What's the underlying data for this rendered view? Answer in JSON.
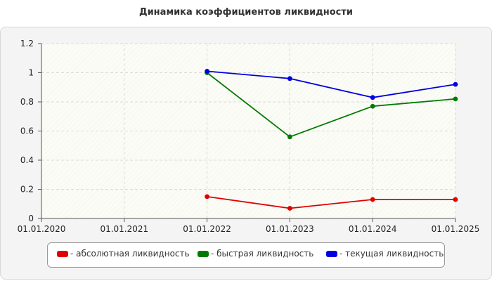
{
  "chart_data": {
    "type": "line",
    "title": "Динамика коэффициентов ликвидности",
    "xlabel": "",
    "ylabel": "",
    "x": [
      "01.01.2020",
      "01.01.2021",
      "01.01.2022",
      "01.01.2023",
      "01.01.2024",
      "01.01.2025"
    ],
    "ylim": [
      0,
      1.2
    ],
    "yticks": [
      0,
      0.2,
      0.4,
      0.6,
      0.8,
      1,
      1.2
    ],
    "grid": true,
    "legend_position": "bottom",
    "series": [
      {
        "name": "- абсолютная ликвидность",
        "color": "#e00000",
        "values": [
          null,
          null,
          0.15,
          0.07,
          0.13,
          0.13
        ]
      },
      {
        "name": "- быстрая ликвидность",
        "color": "#007a00",
        "values": [
          null,
          null,
          1.0,
          0.56,
          0.77,
          0.82
        ]
      },
      {
        "name": "- текущая ликвидность",
        "color": "#0000e0",
        "values": [
          null,
          null,
          1.01,
          0.96,
          0.83,
          0.92
        ]
      }
    ]
  }
}
